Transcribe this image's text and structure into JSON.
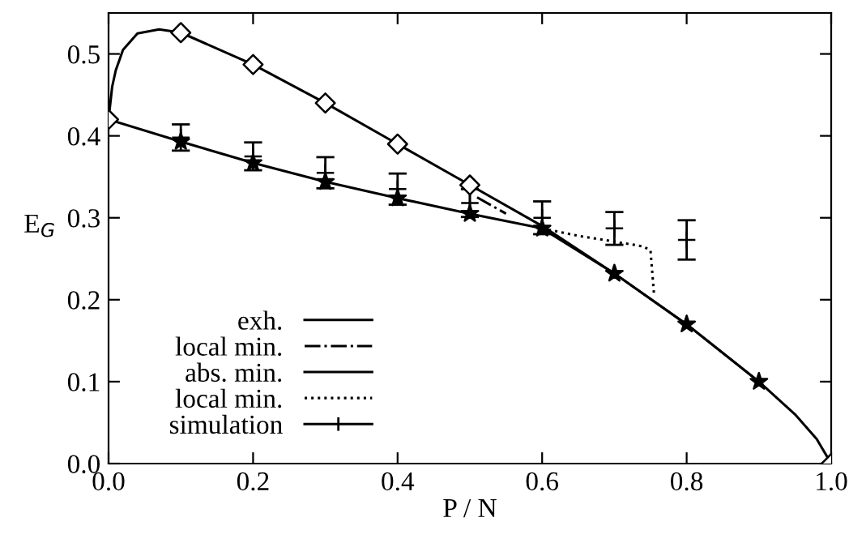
{
  "chart_data": {
    "type": "line",
    "xlabel": "P / N",
    "ylabel": "E$_{G}$",
    "xlim": [
      0.0,
      1.0
    ],
    "ylim": [
      0.0,
      0.55
    ],
    "xticks": [
      "0.0",
      0.2,
      0.4,
      0.6,
      0.8,
      "1.0"
    ],
    "yticks": [
      "0.0",
      0.1,
      0.2,
      0.3,
      0.4,
      0.5
    ],
    "grid": false,
    "legend": "bottom left",
    "series": [
      {
        "type": "scatter",
        "color": "#000000",
        "marker": "diamond",
        "x": [
          0.0,
          0.1,
          0.2,
          0.3,
          0.4,
          0.5,
          1.0
        ],
        "values": [
          0.42,
          0.526,
          0.487,
          0.44,
          0.39,
          0.34,
          0.0
        ]
      },
      {
        "type": "scatter",
        "color": "#000000",
        "marker": "star",
        "x": [
          0.1,
          0.2,
          0.3,
          0.4,
          0.5,
          0.6,
          0.7,
          0.8,
          0.9
        ],
        "values": [
          0.393,
          0.367,
          0.344,
          0.324,
          0.305,
          0.287,
          0.232,
          0.17,
          0.1
        ]
      },
      {
        "name": "exh.",
        "color": "#000000",
        "line_style": "solid",
        "x": [
          0.0,
          0.005,
          0.01,
          0.02,
          0.04,
          0.07,
          0.1,
          0.2,
          0.3,
          0.4,
          0.5,
          0.6,
          0.7,
          0.8,
          0.9,
          0.95,
          0.98,
          1.0
        ],
        "values": [
          0.42,
          0.46,
          0.48,
          0.505,
          0.525,
          0.53,
          0.526,
          0.487,
          0.44,
          0.39,
          0.34,
          0.29,
          0.232,
          0.17,
          0.1,
          0.06,
          0.03,
          0.0
        ]
      },
      {
        "name": "local min.",
        "color": "#000000",
        "line_style": "dashdot",
        "x": [
          0.51,
          0.55
        ],
        "values": [
          0.325,
          0.305
        ]
      },
      {
        "name": "abs. min.",
        "color": "#000000",
        "line_style": "solid",
        "x": [
          0.0,
          0.1,
          0.2,
          0.3,
          0.4,
          0.5,
          0.6,
          0.7,
          0.8,
          0.9
        ],
        "values": [
          0.42,
          0.393,
          0.367,
          0.344,
          0.324,
          0.305,
          0.287,
          0.232,
          0.17,
          0.1
        ]
      },
      {
        "name": "local min.",
        "color": "#000000",
        "line_style": "dotted",
        "x": [
          0.6,
          0.65,
          0.7,
          0.74,
          0.75,
          0.755
        ],
        "values": [
          0.287,
          0.278,
          0.271,
          0.265,
          0.26,
          0.205
        ]
      },
      {
        "name": "simulation",
        "type": "scatter",
        "marker": "cross",
        "color": "#000000",
        "x": [
          0.1,
          0.2,
          0.3,
          0.4,
          0.5,
          0.6,
          0.7,
          0.8
        ],
        "values": [
          0.398,
          0.375,
          0.355,
          0.335,
          0.318,
          0.3,
          0.287,
          0.273
        ],
        "errors": [
          0.016,
          0.017,
          0.019,
          0.019,
          0.017,
          0.02,
          0.02,
          0.024
        ]
      }
    ]
  }
}
